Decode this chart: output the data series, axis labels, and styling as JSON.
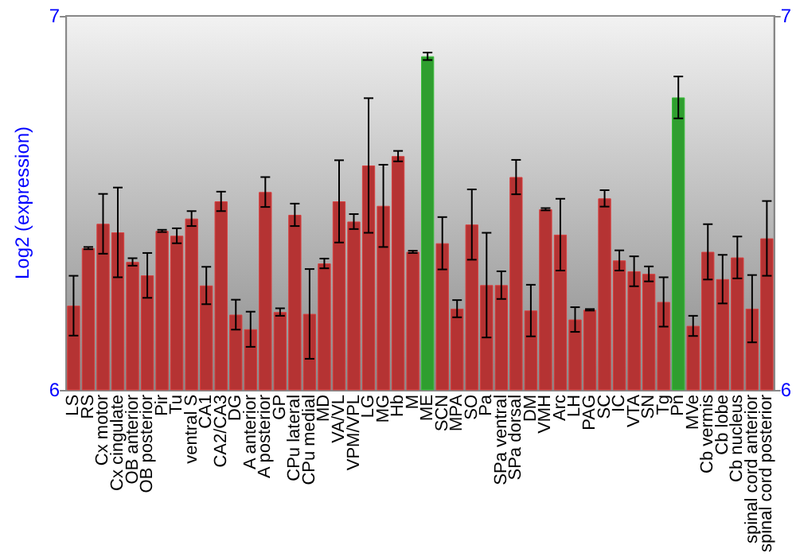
{
  "chart_data": {
    "type": "bar",
    "ylabel": "Log2 (expression)",
    "categories": [
      "LS",
      "RS",
      "Cx motor",
      "Cx cingulate",
      "OB anterior",
      "OB posterior",
      "Pir",
      "Tu",
      "ventral S",
      "CA1",
      "CA2/CA3",
      "DG",
      "A anterior",
      "A posterior",
      "GP",
      "CPu lateral",
      "CPu medial",
      "MD",
      "VA/VL",
      "VPM/VPL",
      "LG",
      "MG",
      "Hb",
      "M",
      "ME",
      "SCN",
      "MPA",
      "SO",
      "Pa",
      "SPa ventral",
      "SPa dorsal",
      "DM",
      "VMH",
      "Arc",
      "LH",
      "PAG",
      "SC",
      "IC",
      "VTA",
      "SN",
      "Tg",
      "Pn",
      "MVe",
      "Cb vermis",
      "Cb lobe",
      "Cb nucleus",
      "spinal cord anterior",
      "spinal cord posterior"
    ],
    "values": [
      6.225,
      6.379,
      6.444,
      6.421,
      6.342,
      6.306,
      6.425,
      6.412,
      6.458,
      6.279,
      6.504,
      6.201,
      6.162,
      6.529,
      6.208,
      6.468,
      6.203,
      6.338,
      6.504,
      6.45,
      6.6,
      6.492,
      6.625,
      6.369,
      6.892,
      6.392,
      6.217,
      6.442,
      6.28,
      6.28,
      6.569,
      6.212,
      6.483,
      6.415,
      6.188,
      6.214,
      6.512,
      6.346,
      6.317,
      6.31,
      6.235,
      6.782,
      6.171,
      6.369,
      6.296,
      6.354,
      6.217,
      6.405
    ],
    "errors": [
      0.08,
      0.003,
      0.08,
      0.12,
      0.01,
      0.06,
      0.003,
      0.02,
      0.02,
      0.05,
      0.026,
      0.04,
      0.047,
      0.04,
      0.01,
      0.03,
      0.12,
      0.013,
      0.11,
      0.02,
      0.18,
      0.11,
      0.014,
      0.003,
      0.01,
      0.07,
      0.023,
      0.094,
      0.14,
      0.037,
      0.046,
      0.069,
      0.003,
      0.096,
      0.033,
      0.002,
      0.022,
      0.027,
      0.04,
      0.02,
      0.066,
      0.056,
      0.027,
      0.074,
      0.065,
      0.056,
      0.09,
      0.1
    ],
    "colors": [
      "#b53333",
      "#b53333",
      "#b53333",
      "#b53333",
      "#b53333",
      "#b53333",
      "#b53333",
      "#b53333",
      "#b53333",
      "#b53333",
      "#b53333",
      "#b53333",
      "#b53333",
      "#b53333",
      "#b53333",
      "#b53333",
      "#b53333",
      "#b53333",
      "#b53333",
      "#b53333",
      "#b53333",
      "#b53333",
      "#b53333",
      "#b53333",
      "#2f9e2f",
      "#b53333",
      "#b53333",
      "#b53333",
      "#b53333",
      "#b53333",
      "#b53333",
      "#b53333",
      "#b53333",
      "#b53333",
      "#b53333",
      "#b53333",
      "#b53333",
      "#b53333",
      "#b53333",
      "#b53333",
      "#b53333",
      "#2f9e2f",
      "#b53333",
      "#b53333",
      "#b53333",
      "#b53333",
      "#b53333",
      "#b53333"
    ],
    "ylim": [
      6,
      7
    ],
    "yticks": [
      6,
      7
    ],
    "y2lim": [
      6,
      7
    ],
    "y2ticks": [
      6,
      7
    ],
    "grid": false
  }
}
